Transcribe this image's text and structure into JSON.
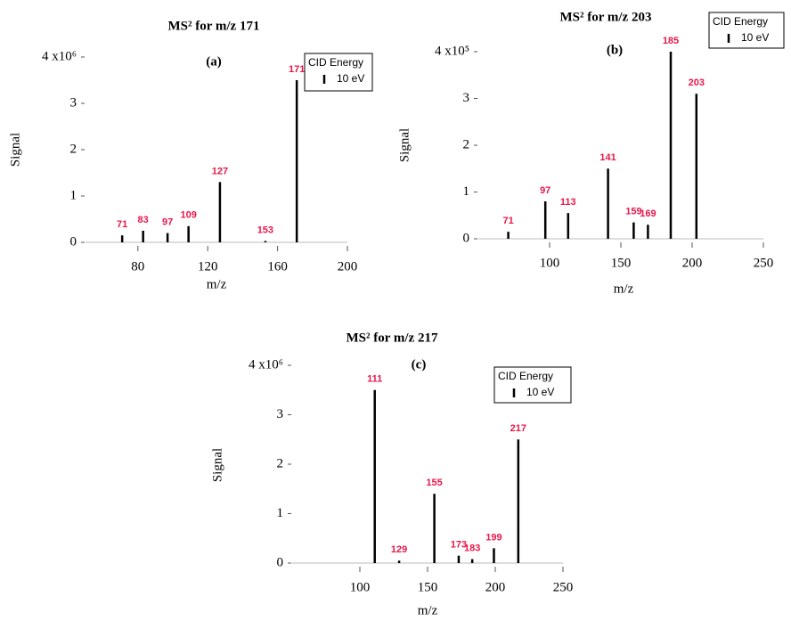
{
  "chart_data": [
    {
      "type": "bar",
      "title": "MS² for m/z 171",
      "annotation": "(a)",
      "xlabel": "m/z",
      "ylabel": "Signal",
      "legend_title": "CID Energy",
      "series": [
        {
          "name": "10 eV",
          "color": "#000000",
          "x": [
            71,
            83,
            97,
            109,
            127,
            153,
            171
          ],
          "values": [
            0.15,
            0.25,
            0.2,
            0.35,
            1.3,
            0.03,
            3.5
          ]
        }
      ],
      "label_color": "#e8174a",
      "xlim": [
        50,
        200
      ],
      "xticks": [
        80,
        120,
        160,
        200
      ],
      "ylim": [
        0,
        4
      ],
      "yticks": [
        0,
        1,
        2,
        3,
        {
          "value": 4,
          "label": "4 x10⁶"
        }
      ]
    },
    {
      "type": "bar",
      "title": "MS² for m/z 203",
      "annotation": "(b)",
      "xlabel": "m/z",
      "ylabel": "Signal",
      "legend_title": "CID Energy",
      "series": [
        {
          "name": "10 eV",
          "color": "#000000",
          "x": [
            71,
            97,
            113,
            141,
            159,
            169,
            185,
            203
          ],
          "values": [
            0.15,
            0.8,
            0.55,
            1.5,
            0.35,
            0.3,
            4.0,
            3.1
          ]
        }
      ],
      "label_color": "#e8174a",
      "xlim": [
        50,
        250
      ],
      "xticks": [
        100,
        150,
        200,
        250
      ],
      "ylim": [
        0,
        4
      ],
      "yticks": [
        0,
        1,
        2,
        3,
        {
          "value": 4,
          "label": "4 x10⁵"
        }
      ]
    },
    {
      "type": "bar",
      "title": "MS² for m/z 217",
      "annotation": "(c)",
      "xlabel": "m/z",
      "ylabel": "Signal",
      "legend_title": "CID Energy",
      "series": [
        {
          "name": "10 eV",
          "color": "#000000",
          "x": [
            111,
            129,
            155,
            173,
            183,
            199,
            217
          ],
          "values": [
            3.5,
            0.05,
            1.4,
            0.15,
            0.08,
            0.3,
            2.5
          ]
        }
      ],
      "label_color": "#e8174a",
      "xlim": [
        50,
        250
      ],
      "xticks": [
        100,
        150,
        200,
        250
      ],
      "ylim": [
        0,
        4
      ],
      "yticks": [
        0,
        1,
        2,
        3,
        {
          "value": 4,
          "label": "4 x10⁶"
        }
      ]
    }
  ]
}
